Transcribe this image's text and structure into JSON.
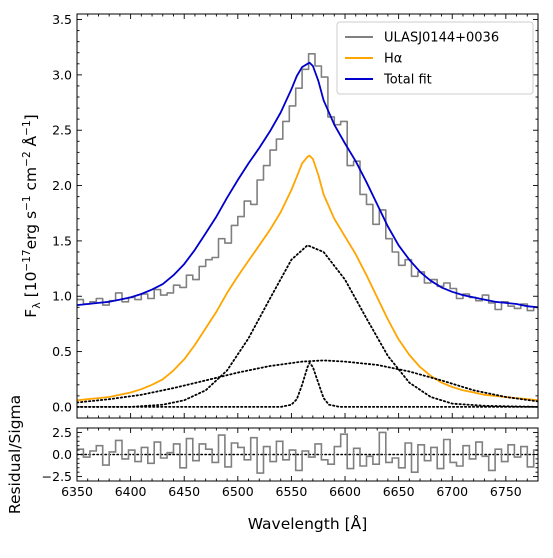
{
  "chart_data": [
    {
      "panel": "main",
      "type": "line",
      "xlabel": "",
      "ylabel": "F_λ [10^-17 erg s^-1 cm^-2 Å^-1]",
      "ylabel_parts": {
        "main": "F",
        "sub": "λ",
        "pre": " [10",
        "e1": "−17",
        "u1": "erg s",
        "e2": "−1",
        "u2": " cm",
        "e3": "−2",
        "u3": " Å",
        "e4": "−1",
        "post": "]"
      },
      "xlim": [
        6350,
        6780
      ],
      "ylim": [
        -0.1,
        3.55
      ],
      "xticks": [
        6350,
        6400,
        6450,
        6500,
        6550,
        6600,
        6650,
        6700,
        6750
      ],
      "yticks": [
        0.0,
        0.5,
        1.0,
        1.5,
        2.0,
        2.5,
        3.0,
        3.5
      ],
      "ytick_labels": [
        "0.0",
        "0.5",
        "1.0",
        "1.5",
        "2.0",
        "2.5",
        "3.0",
        "3.5"
      ],
      "legend": {
        "position": "top-right",
        "entries": [
          {
            "label": "ULASJ0144+0036",
            "color": "#808080"
          },
          {
            "label": "Hα",
            "color": "#FFA500"
          },
          {
            "label": "Total fit",
            "color": "#0000CD"
          }
        ]
      },
      "series": [
        {
          "name": "ULASJ0144+0036",
          "style": "steps",
          "color": "#808080",
          "x": [
            6350,
            6356,
            6362,
            6368,
            6374,
            6380,
            6386,
            6392,
            6398,
            6404,
            6410,
            6416,
            6422,
            6428,
            6434,
            6440,
            6446,
            6452,
            6458,
            6464,
            6470,
            6476,
            6482,
            6488,
            6494,
            6500,
            6506,
            6512,
            6518,
            6524,
            6530,
            6536,
            6542,
            6548,
            6554,
            6560,
            6566,
            6572,
            6578,
            6584,
            6590,
            6596,
            6602,
            6608,
            6614,
            6620,
            6626,
            6632,
            6638,
            6644,
            6650,
            6656,
            6662,
            6668,
            6674,
            6680,
            6686,
            6692,
            6698,
            6704,
            6710,
            6716,
            6722,
            6728,
            6734,
            6740,
            6746,
            6752,
            6758,
            6764,
            6770,
            6776
          ],
          "y": [
            0.97,
            0.93,
            0.95,
            0.98,
            0.92,
            0.96,
            1.03,
            0.95,
            0.99,
            0.97,
            1.02,
            0.98,
            1.06,
            1.01,
            1.03,
            1.1,
            1.08,
            1.19,
            1.15,
            1.27,
            1.33,
            1.35,
            1.52,
            1.48,
            1.64,
            1.72,
            1.86,
            1.83,
            2.05,
            2.18,
            2.32,
            2.42,
            2.58,
            2.72,
            2.88,
            3.05,
            3.19,
            3.08,
            2.98,
            2.62,
            2.55,
            2.58,
            2.18,
            2.22,
            1.92,
            1.83,
            1.65,
            1.78,
            1.52,
            1.4,
            1.28,
            1.33,
            1.18,
            1.22,
            1.12,
            1.15,
            1.09,
            1.12,
            1.07,
            0.98,
            1.02,
            0.99,
            0.96,
            1.01,
            0.94,
            0.88,
            0.95,
            0.91,
            0.89,
            0.93,
            0.87,
            0.9
          ]
        },
        {
          "name": "Hα",
          "style": "line",
          "color": "#FFA500",
          "x": [
            6350,
            6360,
            6370,
            6380,
            6390,
            6400,
            6410,
            6420,
            6430,
            6440,
            6450,
            6460,
            6470,
            6480,
            6490,
            6500,
            6510,
            6520,
            6530,
            6540,
            6550,
            6555,
            6560,
            6565,
            6567,
            6570,
            6575,
            6580,
            6590,
            6600,
            6610,
            6620,
            6630,
            6640,
            6650,
            6660,
            6670,
            6680,
            6690,
            6700,
            6710,
            6720,
            6730,
            6740,
            6750,
            6760,
            6770,
            6780
          ],
          "y": [
            0.06,
            0.07,
            0.08,
            0.09,
            0.11,
            0.13,
            0.16,
            0.2,
            0.25,
            0.33,
            0.43,
            0.56,
            0.71,
            0.86,
            1.03,
            1.18,
            1.32,
            1.46,
            1.6,
            1.76,
            1.96,
            2.08,
            2.2,
            2.26,
            2.27,
            2.24,
            2.1,
            1.92,
            1.7,
            1.54,
            1.38,
            1.19,
            0.99,
            0.79,
            0.61,
            0.47,
            0.36,
            0.28,
            0.22,
            0.18,
            0.15,
            0.13,
            0.11,
            0.1,
            0.09,
            0.08,
            0.07,
            0.06
          ]
        },
        {
          "name": "Total fit",
          "style": "line",
          "color": "#0000CD",
          "x": [
            6350,
            6360,
            6370,
            6380,
            6390,
            6400,
            6410,
            6420,
            6430,
            6440,
            6450,
            6460,
            6470,
            6480,
            6490,
            6500,
            6510,
            6520,
            6530,
            6540,
            6550,
            6555,
            6560,
            6565,
            6567,
            6570,
            6575,
            6580,
            6590,
            6600,
            6610,
            6620,
            6630,
            6640,
            6650,
            6660,
            6670,
            6680,
            6690,
            6700,
            6710,
            6720,
            6730,
            6740,
            6750,
            6760,
            6770,
            6780
          ],
          "y": [
            0.92,
            0.93,
            0.94,
            0.95,
            0.97,
            0.99,
            1.02,
            1.06,
            1.11,
            1.19,
            1.29,
            1.42,
            1.57,
            1.72,
            1.89,
            2.05,
            2.2,
            2.34,
            2.49,
            2.66,
            2.87,
            2.99,
            3.07,
            3.1,
            3.11,
            3.08,
            2.95,
            2.77,
            2.55,
            2.38,
            2.22,
            2.03,
            1.83,
            1.63,
            1.46,
            1.33,
            1.22,
            1.14,
            1.08,
            1.04,
            1.01,
            0.99,
            0.97,
            0.95,
            0.94,
            0.93,
            0.91,
            0.9
          ]
        },
        {
          "name": "",
          "style": "dotted",
          "color": "#000000",
          "x": [
            6350,
            6400,
            6430,
            6450,
            6470,
            6490,
            6510,
            6530,
            6550,
            6565,
            6580,
            6600,
            6620,
            6640,
            6660,
            6680,
            6700,
            6730,
            6780
          ],
          "y": [
            0.0,
            0.0,
            0.02,
            0.06,
            0.15,
            0.33,
            0.62,
            0.98,
            1.33,
            1.46,
            1.4,
            1.15,
            0.8,
            0.46,
            0.22,
            0.09,
            0.03,
            0.01,
            0.0
          ]
        },
        {
          "name": "",
          "style": "dotted",
          "color": "#000000",
          "x": [
            6350,
            6380,
            6410,
            6440,
            6470,
            6500,
            6530,
            6560,
            6580,
            6600,
            6630,
            6660,
            6690,
            6720,
            6750,
            6780
          ],
          "y": [
            0.04,
            0.07,
            0.11,
            0.17,
            0.24,
            0.31,
            0.37,
            0.41,
            0.42,
            0.41,
            0.38,
            0.32,
            0.24,
            0.15,
            0.09,
            0.05
          ]
        },
        {
          "name": "",
          "style": "dotted",
          "color": "#000000",
          "x": [
            6350,
            6540,
            6550,
            6555,
            6560,
            6565,
            6567,
            6570,
            6575,
            6580,
            6585,
            6595,
            6780
          ],
          "y": [
            0.0,
            0.0,
            0.02,
            0.07,
            0.2,
            0.36,
            0.4,
            0.36,
            0.22,
            0.08,
            0.02,
            0.0,
            0.0
          ]
        }
      ]
    },
    {
      "panel": "residual",
      "type": "line",
      "xlabel": "Wavelength [Å]",
      "ylabel": "Residual/Sigma",
      "xlim": [
        6350,
        6780
      ],
      "ylim": [
        -3.0,
        3.0
      ],
      "xticks": [
        6350,
        6400,
        6450,
        6500,
        6550,
        6600,
        6650,
        6700,
        6750
      ],
      "yticks": [
        -2.5,
        0.0,
        2.5
      ],
      "ytick_labels": [
        "−2.5",
        "0.0",
        "2.5"
      ],
      "zero_line": {
        "y": 0.0,
        "style": "dotted",
        "color": "#000000"
      },
      "series": [
        {
          "name": "",
          "style": "steps",
          "color": "#808080",
          "x": [
            6350,
            6356,
            6362,
            6368,
            6374,
            6380,
            6386,
            6392,
            6398,
            6404,
            6410,
            6416,
            6422,
            6428,
            6434,
            6440,
            6446,
            6452,
            6458,
            6464,
            6470,
            6476,
            6482,
            6488,
            6494,
            6500,
            6506,
            6512,
            6518,
            6524,
            6530,
            6536,
            6542,
            6548,
            6554,
            6560,
            6566,
            6572,
            6578,
            6584,
            6590,
            6596,
            6602,
            6608,
            6614,
            6620,
            6626,
            6632,
            6638,
            6644,
            6650,
            6656,
            6662,
            6668,
            6674,
            6680,
            6686,
            6692,
            6698,
            6704,
            6710,
            6716,
            6722,
            6728,
            6734,
            6740,
            6746,
            6752,
            6758,
            6764,
            6770,
            6776
          ],
          "y": [
            0.6,
            -0.3,
            0.4,
            1.0,
            -1.2,
            0.3,
            1.6,
            -0.5,
            0.5,
            -0.8,
            0.8,
            -1.0,
            1.4,
            -0.4,
            0.2,
            1.2,
            -1.5,
            1.8,
            -0.7,
            1.2,
            0.6,
            -0.9,
            2.2,
            -1.4,
            1.3,
            0.8,
            -0.6,
            1.9,
            -2.1,
            0.9,
            -0.8,
            1.5,
            -0.6,
            0.5,
            -1.8,
            0.4,
            -0.3,
            1.2,
            -0.6,
            -1.1,
            0.9,
            2.3,
            -1.6,
            0.7,
            -1.3,
            -0.2,
            -1.1,
            2.5,
            -0.9,
            -0.4,
            -1.5,
            1.3,
            -2.0,
            1.1,
            -0.7,
            0.8,
            -1.6,
            1.7,
            -0.9,
            -1.3,
            1.0,
            -0.5,
            1.4,
            -0.2,
            -1.8,
            0.6,
            -0.8,
            1.1,
            -0.3,
            0.9,
            -1.4,
            0.5
          ]
        }
      ]
    }
  ]
}
